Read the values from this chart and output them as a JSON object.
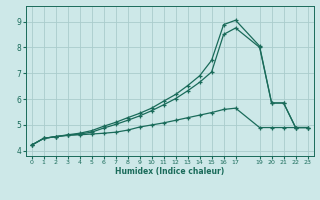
{
  "background_color": "#cde8e8",
  "grid_color": "#aacccc",
  "line_color": "#1a6b5a",
  "xlabel": "Humidex (Indice chaleur)",
  "xlim": [
    -0.5,
    23.5
  ],
  "ylim": [
    3.8,
    9.6
  ],
  "x_ticks": [
    0,
    1,
    2,
    3,
    4,
    5,
    6,
    7,
    8,
    9,
    10,
    11,
    12,
    13,
    14,
    15,
    16,
    17,
    19,
    20,
    21,
    22,
    23
  ],
  "y_ticks": [
    4,
    5,
    6,
    7,
    8,
    9
  ],
  "line1_x": [
    0,
    1,
    2,
    3,
    4,
    5,
    6,
    7,
    8,
    9,
    10,
    11,
    12,
    13,
    14,
    15,
    16,
    17,
    19,
    20,
    21,
    22,
    23
  ],
  "line1_y": [
    4.22,
    4.48,
    4.55,
    4.6,
    4.62,
    4.65,
    4.68,
    4.72,
    4.8,
    4.92,
    5.0,
    5.08,
    5.18,
    5.28,
    5.38,
    5.48,
    5.6,
    5.65,
    4.9,
    4.9,
    4.9,
    4.9,
    4.9
  ],
  "line2_x": [
    0,
    1,
    2,
    3,
    4,
    5,
    6,
    7,
    8,
    9,
    10,
    11,
    12,
    13,
    14,
    15,
    16,
    17,
    19,
    20,
    21,
    22,
    23
  ],
  "line2_y": [
    4.22,
    4.48,
    4.55,
    4.6,
    4.65,
    4.72,
    4.88,
    5.02,
    5.18,
    5.35,
    5.55,
    5.78,
    6.02,
    6.32,
    6.65,
    7.05,
    8.5,
    8.75,
    8.0,
    5.85,
    5.85,
    4.9,
    4.9
  ],
  "line3_x": [
    0,
    1,
    2,
    3,
    4,
    5,
    6,
    7,
    8,
    9,
    10,
    11,
    12,
    13,
    14,
    15,
    16,
    17,
    19,
    20,
    21,
    22,
    23
  ],
  "line3_y": [
    4.22,
    4.48,
    4.55,
    4.62,
    4.68,
    4.78,
    4.95,
    5.1,
    5.28,
    5.45,
    5.65,
    5.92,
    6.18,
    6.52,
    6.9,
    7.5,
    8.88,
    9.05,
    8.05,
    5.85,
    5.85,
    4.9,
    4.9
  ]
}
